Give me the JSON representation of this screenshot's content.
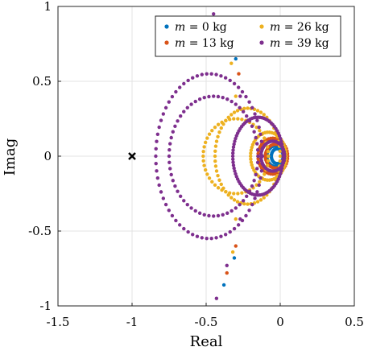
{
  "chart_data": {
    "type": "scatter",
    "title": "",
    "xlabel": "Real",
    "ylabel": "Imag",
    "xlim": [
      -1.5,
      0.5
    ],
    "ylim": [
      -1,
      1
    ],
    "xticks": [
      -1.5,
      -1,
      -0.5,
      0,
      0.5
    ],
    "yticks": [
      -1,
      -0.5,
      0,
      0.5,
      1
    ],
    "xtick_labels": [
      "-1.5",
      "-1",
      "-0.5",
      "0",
      "0.5"
    ],
    "ytick_labels": [
      "-1",
      "-0.5",
      "0",
      "0.5",
      "1"
    ],
    "grid": true,
    "legend_position": "top-right",
    "legend_columns": 2,
    "critical_point": {
      "x": -1,
      "y": 0,
      "marker": "x",
      "color": "#000000"
    },
    "series": [
      {
        "name": "m = 0 kg",
        "legend_var": "m",
        "legend_value": "= 0 kg",
        "color": "#0072BD",
        "loops": [
          {
            "cx": -0.02,
            "cy": 0,
            "rx": 0.04,
            "ry": 0.05,
            "n": 30
          },
          {
            "cx": -0.03,
            "cy": 0,
            "rx": 0.06,
            "ry": 0.07,
            "n": 36
          }
        ],
        "tail": [
          [
            -0.4,
            0.84
          ],
          [
            -0.38,
            -0.86
          ],
          [
            -0.3,
            0.65
          ],
          [
            -0.31,
            -0.68
          ]
        ]
      },
      {
        "name": "m = 13 kg",
        "legend_var": "m",
        "legend_value": "= 13 kg",
        "color": "#D95319",
        "loops": [
          {
            "cx": -0.03,
            "cy": 0,
            "rx": 0.07,
            "ry": 0.08,
            "n": 40
          },
          {
            "cx": -0.05,
            "cy": 0,
            "rx": 0.1,
            "ry": 0.12,
            "n": 44
          }
        ],
        "tail": [
          [
            -0.35,
            0.75
          ],
          [
            -0.36,
            -0.78
          ],
          [
            -0.28,
            0.55
          ],
          [
            -0.3,
            -0.6
          ]
        ]
      },
      {
        "name": "m = 26 kg",
        "legend_var": "m",
        "legend_value": "= 26 kg",
        "color": "#EDB120",
        "loops": [
          {
            "cx": -0.22,
            "cy": 0,
            "rx": 0.22,
            "ry": 0.32,
            "n": 60
          },
          {
            "cx": -0.3,
            "cy": 0,
            "rx": 0.22,
            "ry": 0.25,
            "n": 50
          },
          {
            "cx": -0.08,
            "cy": 0,
            "rx": 0.12,
            "ry": 0.16,
            "n": 50
          }
        ],
        "tail": [
          [
            -0.3,
            0.4
          ],
          [
            -0.3,
            -0.42
          ],
          [
            -0.33,
            0.62
          ],
          [
            -0.32,
            -0.64
          ]
        ]
      },
      {
        "name": "m = 39 kg",
        "legend_var": "m",
        "legend_value": "= 39 kg",
        "color": "#7E2F8E",
        "loops": [
          {
            "cx": -0.48,
            "cy": 0,
            "rx": 0.36,
            "ry": 0.55,
            "n": 70
          },
          {
            "cx": -0.45,
            "cy": 0,
            "rx": 0.3,
            "ry": 0.4,
            "n": 60
          },
          {
            "cx": -0.15,
            "cy": 0,
            "rx": 0.17,
            "ry": 0.26,
            "n": 80
          },
          {
            "cx": -0.05,
            "cy": 0,
            "rx": 0.08,
            "ry": 0.1,
            "n": 40
          }
        ],
        "tail": [
          [
            -0.45,
            0.95
          ],
          [
            -0.43,
            -0.95
          ],
          [
            -0.34,
            0.72
          ],
          [
            -0.36,
            -0.73
          ],
          [
            -0.27,
            0.4
          ],
          [
            -0.27,
            -0.42
          ]
        ]
      }
    ]
  }
}
